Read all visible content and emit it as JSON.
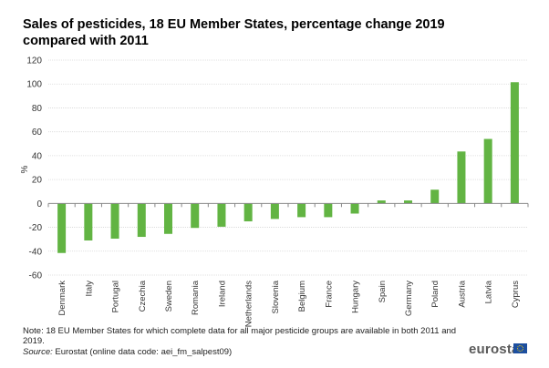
{
  "chart_data": {
    "type": "bar",
    "title": "Sales of pesticides, 18 EU Member States, percentage change 2019 compared with 2011",
    "xlabel": "",
    "ylabel": "%",
    "ylim": [
      -60,
      120
    ],
    "yticks": [
      120,
      100,
      80,
      60,
      40,
      20,
      0,
      -20,
      -40,
      -60
    ],
    "grid": true,
    "legend": "none",
    "bar_color": "#62b443",
    "categories": [
      "Denmark",
      "Italy",
      "Portugal",
      "Czechia",
      "Sweden",
      "Romania",
      "Ireland",
      "Netherlands",
      "Slovenia",
      "Belgium",
      "France",
      "Hungary",
      "Spain",
      "Germany",
      "Poland",
      "Austria",
      "Latvia",
      "Cyprus"
    ],
    "values": [
      -41.5,
      -31,
      -29.5,
      -28,
      -25.5,
      -20.5,
      -19.5,
      -15,
      -13,
      -11.5,
      -11.5,
      -8.5,
      2.5,
      2.5,
      11.5,
      43.5,
      54,
      101.5
    ]
  },
  "footer": {
    "note": "Note: 18 EU Member States for which complete data for all major pesticide groups are available in both 2011 and 2019.",
    "source_label": "Source:",
    "source_text": " Eurostat (online data code: aei_fm_salpest09)",
    "logo": "eurostat"
  }
}
